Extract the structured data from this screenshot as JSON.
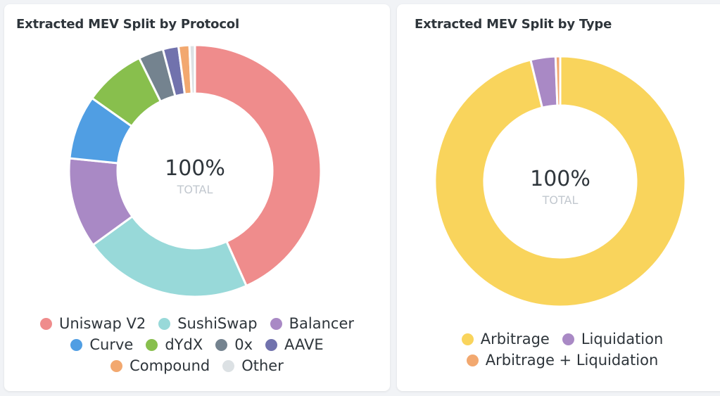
{
  "chart_data": [
    {
      "type": "pie",
      "title": "Extracted MEV Split by Protocol",
      "center_value": "100%",
      "center_label": "TOTAL",
      "categories": [
        "Uniswap V2",
        "SushiSwap",
        "Balancer",
        "Curve",
        "dYdX",
        "0x",
        "AAVE",
        "Compound",
        "Other"
      ],
      "values": [
        43.3,
        21.7,
        11.6,
        8.2,
        7.9,
        3.2,
        2.0,
        1.4,
        0.7
      ],
      "colors": [
        "#ef8c8c",
        "#98d9d9",
        "#a989c5",
        "#509ee3",
        "#88bf4d",
        "#74838f",
        "#7172ad",
        "#f2a86f",
        "#dce1e4"
      ],
      "legend_rows": [
        [
          0,
          1,
          2
        ],
        [
          3,
          4,
          5,
          6
        ],
        [
          7,
          8
        ]
      ]
    },
    {
      "type": "pie",
      "title": "Extracted MEV Split by Type",
      "center_value": "100%",
      "center_label": "TOTAL",
      "categories": [
        "Arbitrage",
        "Liquidation",
        "Arbitrage + Liquidation"
      ],
      "values": [
        96.2,
        3.2,
        0.6
      ],
      "colors": [
        "#f9d45c",
        "#a989c5",
        "#f2a86f"
      ],
      "legend_rows": [
        [
          0,
          1
        ],
        [
          2
        ]
      ]
    }
  ]
}
